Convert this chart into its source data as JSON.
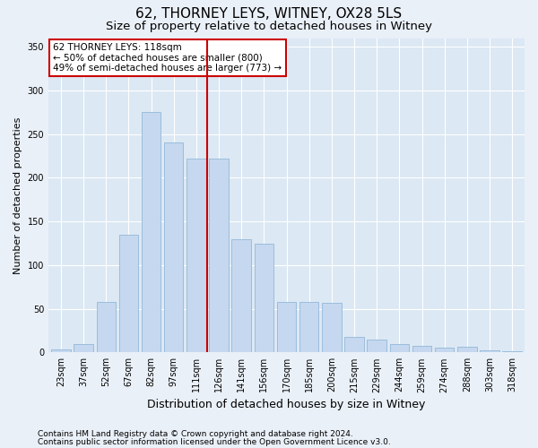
{
  "title": "62, THORNEY LEYS, WITNEY, OX28 5LS",
  "subtitle": "Size of property relative to detached houses in Witney",
  "xlabel": "Distribution of detached houses by size in Witney",
  "ylabel": "Number of detached properties",
  "bar_labels": [
    "23sqm",
    "37sqm",
    "52sqm",
    "67sqm",
    "82sqm",
    "97sqm",
    "111sqm",
    "126sqm",
    "141sqm",
    "156sqm",
    "170sqm",
    "185sqm",
    "200sqm",
    "215sqm",
    "229sqm",
    "244sqm",
    "259sqm",
    "274sqm",
    "288sqm",
    "303sqm",
    "318sqm"
  ],
  "bar_heights": [
    3,
    10,
    58,
    135,
    275,
    240,
    222,
    222,
    130,
    125,
    58,
    58,
    57,
    18,
    15,
    10,
    8,
    5,
    6,
    2,
    1
  ],
  "bar_color": "#c5d8ef",
  "bar_edge_color": "#92b8d8",
  "vline_color": "#cc0000",
  "vline_x": 6.5,
  "annotation_text": "62 THORNEY LEYS: 118sqm\n← 50% of detached houses are smaller (800)\n49% of semi-detached houses are larger (773) →",
  "annotation_box_facecolor": "white",
  "annotation_box_edgecolor": "#cc0000",
  "footnote1": "Contains HM Land Registry data © Crown copyright and database right 2024.",
  "footnote2": "Contains public sector information licensed under the Open Government Licence v3.0.",
  "ylim": [
    0,
    360
  ],
  "yticks": [
    0,
    50,
    100,
    150,
    200,
    250,
    300,
    350
  ],
  "fig_bg_color": "#eaf0f8",
  "plot_bg_color": "#dce8f4",
  "grid_color": "white",
  "title_fontsize": 11,
  "subtitle_fontsize": 9.5,
  "xlabel_fontsize": 9,
  "ylabel_fontsize": 8,
  "tick_fontsize": 7,
  "annotation_fontsize": 7.5,
  "footnote_fontsize": 6.5
}
